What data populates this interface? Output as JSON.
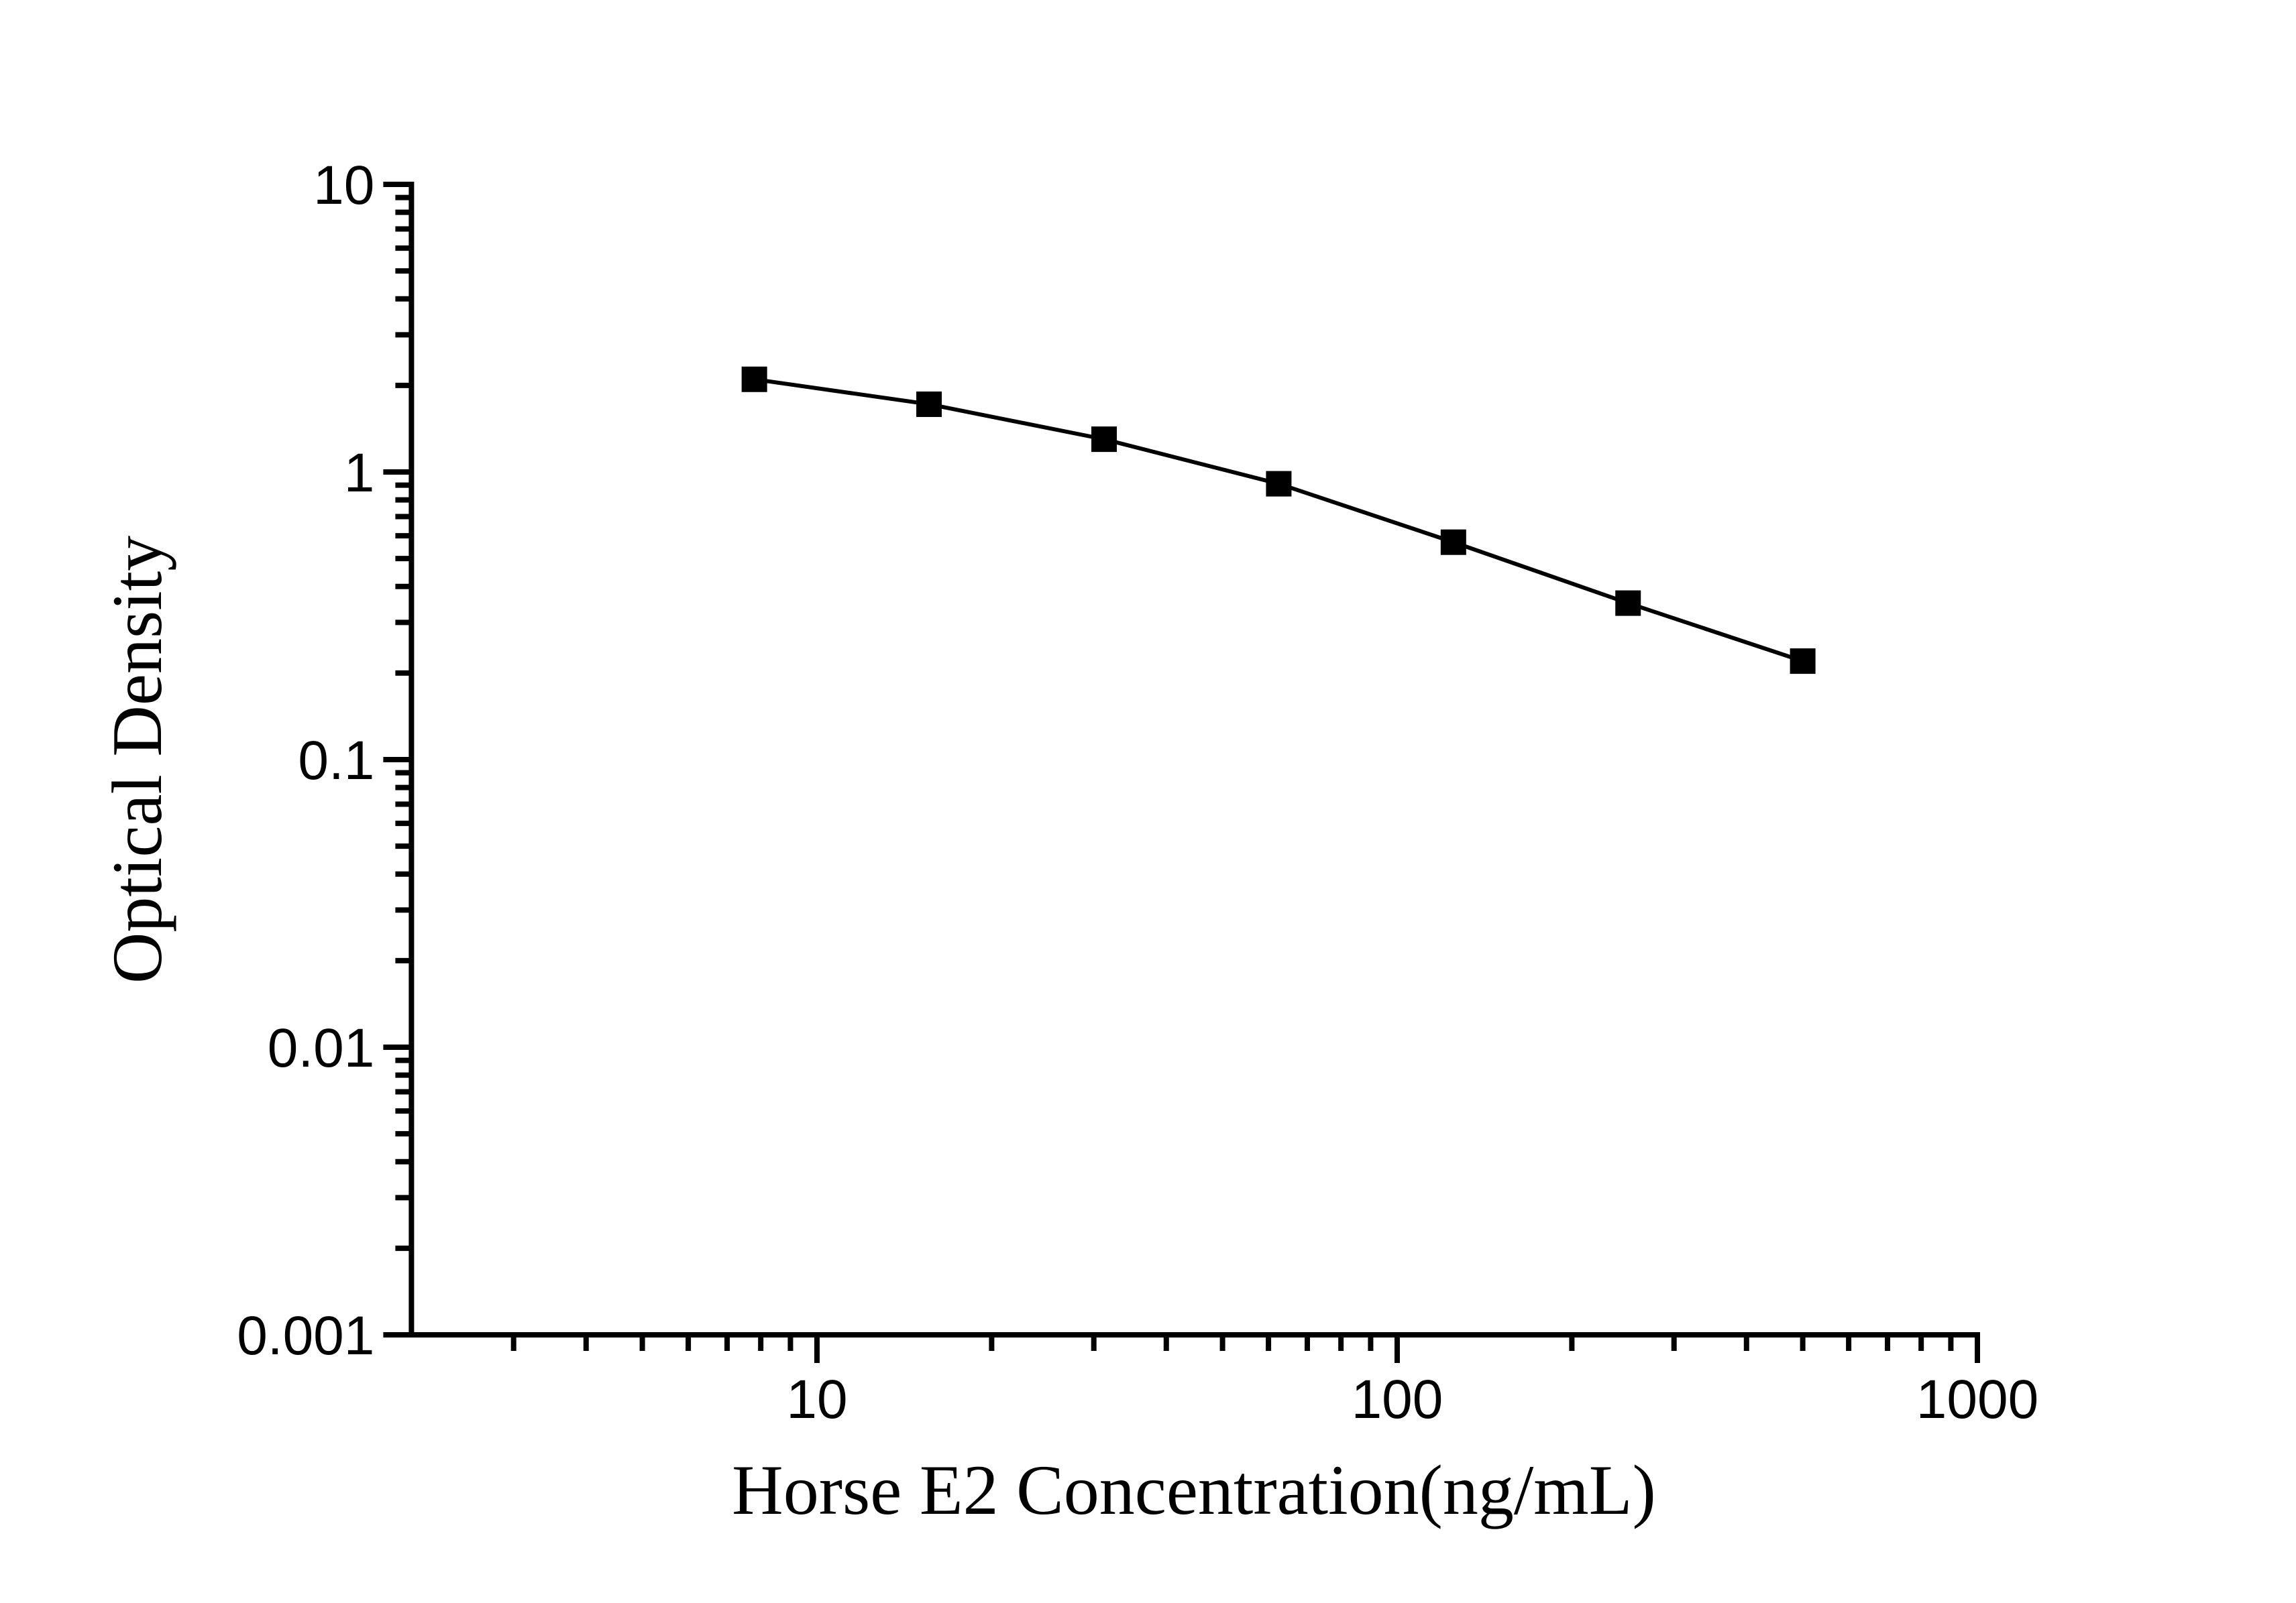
{
  "page": {
    "background_color": "#ffffff",
    "foreground_color": "#000000"
  },
  "chart_data": {
    "type": "line",
    "title": "",
    "xlabel": "Horse E2 Concentration(ng/mL)",
    "ylabel": "Optical Density",
    "x_scale": "log",
    "y_scale": "log",
    "xlim": [
      2,
      1000
    ],
    "ylim": [
      0.001,
      10
    ],
    "grid": false,
    "legend": "none",
    "x_major_ticks": [
      {
        "value": 10,
        "label": "10"
      },
      {
        "value": 100,
        "label": "100"
      },
      {
        "value": 1000,
        "label": "1000"
      }
    ],
    "y_major_ticks": [
      {
        "value": 10,
        "label": "10"
      },
      {
        "value": 1,
        "label": "1"
      },
      {
        "value": 0.1,
        "label": "0.1"
      },
      {
        "value": 0.01,
        "label": "0.01"
      },
      {
        "value": 0.001,
        "label": "0.001"
      }
    ],
    "series": [
      {
        "name": "standard-curve",
        "marker": "square",
        "color": "#000000",
        "points": [
          {
            "x": 7.8,
            "y": 2.1
          },
          {
            "x": 15.6,
            "y": 1.72
          },
          {
            "x": 31.25,
            "y": 1.3
          },
          {
            "x": 62.5,
            "y": 0.91
          },
          {
            "x": 125,
            "y": 0.57
          },
          {
            "x": 250,
            "y": 0.35
          },
          {
            "x": 500,
            "y": 0.22
          }
        ]
      }
    ]
  }
}
